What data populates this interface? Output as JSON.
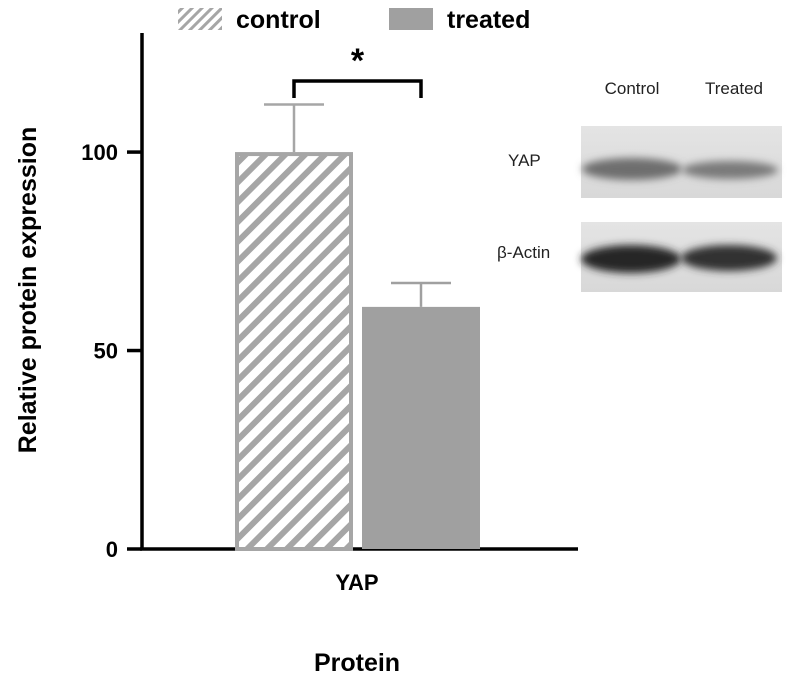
{
  "chart_data": {
    "type": "bar",
    "categories": [
      "YAP"
    ],
    "series": [
      {
        "name": "control",
        "values": [
          100
        ],
        "error": [
          12
        ],
        "color": "#a6a6a6",
        "pattern": "hatch"
      },
      {
        "name": "treated",
        "values": [
          61
        ],
        "error": [
          6
        ],
        "color": "#a0a0a0",
        "pattern": "solid"
      }
    ],
    "xlabel": "Protein",
    "ylabel": "Relative protein expression",
    "ylim": [
      0,
      130
    ],
    "yticks": [
      0,
      50,
      100
    ],
    "ytick_labels": [
      "0",
      "50",
      "100"
    ],
    "grid": false,
    "legend_position": "top",
    "significance": {
      "label": "*",
      "between": [
        "control",
        "treated"
      ]
    }
  },
  "blot": {
    "column_labels": [
      "Control",
      "Treated"
    ],
    "row_labels": [
      "YAP",
      "β-Actin"
    ]
  }
}
